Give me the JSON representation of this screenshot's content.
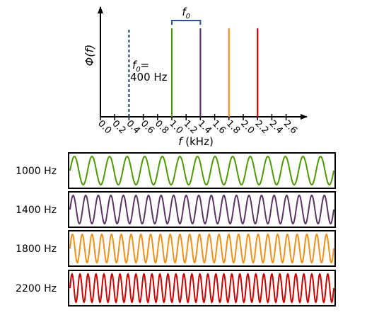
{
  "spectrum": {
    "ylabel": "Φ(f)",
    "xlabel_sym": "f",
    "xlabel_unit": "(kHz)",
    "ticks": [
      "0.0",
      "0.2",
      "0.4",
      "0.6",
      "0.8",
      "1.0",
      "1.2",
      "1.4",
      "1.6",
      "1.8",
      "2.0",
      "2.2",
      "2.4",
      "2.6"
    ],
    "tick_values": [
      0.0,
      0.2,
      0.4,
      0.6,
      0.8,
      1.0,
      1.2,
      1.4,
      1.6,
      1.8,
      2.0,
      2.2,
      2.4,
      2.6
    ],
    "xlim": [
      0,
      2.9
    ],
    "fundamental": {
      "freq_khz": 0.4,
      "color": "#1f4e79",
      "label_sym": "f",
      "label_sub": "0",
      "label_eq": "=",
      "label_value": "400 Hz"
    },
    "bracket": {
      "from_khz": 1.0,
      "to_khz": 1.4,
      "label_sym": "f",
      "label_sub": "0",
      "color": "#2f4f8f"
    },
    "components": [
      {
        "freq_khz": 1.0,
        "color": "#4e9a06"
      },
      {
        "freq_khz": 1.4,
        "color": "#5c3566"
      },
      {
        "freq_khz": 1.8,
        "color": "#f0901a"
      },
      {
        "freq_khz": 2.2,
        "color": "#cc0000"
      }
    ]
  },
  "waves": [
    {
      "label": "1000 Hz",
      "color": "#4e9a06",
      "cycles": 15
    },
    {
      "label": "1400 Hz",
      "color": "#5c3566",
      "cycles": 21
    },
    {
      "label": "1800 Hz",
      "color": "#f0901a",
      "cycles": 27
    },
    {
      "label": "2200 Hz",
      "color": "#cc0000",
      "cycles": 33
    }
  ]
}
